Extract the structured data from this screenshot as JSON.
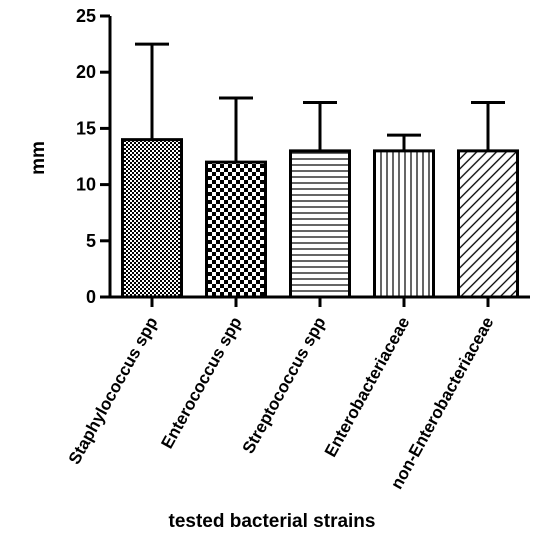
{
  "chart_data": {
    "type": "bar",
    "title": "",
    "xlabel": "tested bacterial strains",
    "ylabel": "mm",
    "categories": [
      "Staphylococcus spp",
      "Enterococcus spp",
      "Streptococcus spp",
      "Enterobacteriaceae",
      "non-Enterobacteriaceae"
    ],
    "values": [
      14,
      12,
      13,
      13,
      13
    ],
    "error_upper": [
      22.5,
      17.7,
      17.3,
      14.4,
      17.3
    ],
    "patterns": [
      "fine-checker",
      "coarse-checker",
      "horizontal-lines",
      "vertical-lines",
      "diagonal-lines"
    ],
    "ylim": [
      0,
      25
    ],
    "yticks": [
      0,
      5,
      10,
      15,
      20,
      25
    ],
    "grid": false,
    "legend": "none",
    "colors": {
      "bar_fill": "#ffffff",
      "bar_stroke": "#000000",
      "pattern": "#000000"
    }
  }
}
